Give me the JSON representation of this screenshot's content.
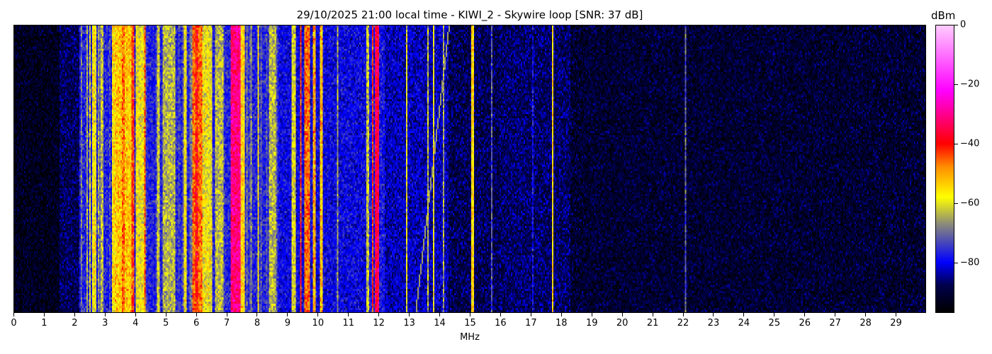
{
  "chart_data": {
    "type": "heatmap",
    "title": "29/10/2025 21:00 local time - KIWI_2 - Skywire loop [SNR: 37 dB]",
    "xlabel": "MHz",
    "ylabel": "",
    "xlim": [
      0,
      30
    ],
    "x_ticks": [
      "0",
      "1",
      "2",
      "3",
      "4",
      "5",
      "6",
      "7",
      "8",
      "9",
      "10",
      "11",
      "12",
      "13",
      "14",
      "15",
      "16",
      "17",
      "18",
      "19",
      "20",
      "21",
      "22",
      "23",
      "24",
      "25",
      "26",
      "27",
      "28",
      "29"
    ],
    "colorbar": {
      "label": "dBm",
      "range": [
        -97,
        0
      ],
      "ticks": [
        0,
        -20,
        -40,
        -60,
        -80
      ],
      "tick_labels": [
        "0",
        "−20",
        "−40",
        "−60",
        "−80"
      ],
      "colormap": [
        {
          "dBm": -97,
          "color": "#000000"
        },
        {
          "dBm": -88,
          "color": "#00004a"
        },
        {
          "dBm": -80,
          "color": "#0000ff"
        },
        {
          "dBm": -67,
          "color": "#8c8c78"
        },
        {
          "dBm": -58,
          "color": "#ffff00"
        },
        {
          "dBm": -48,
          "color": "#ff9000"
        },
        {
          "dBm": -40,
          "color": "#ff0000"
        },
        {
          "dBm": -22,
          "color": "#ff00ff"
        },
        {
          "dBm": 0,
          "color": "#ffccff"
        }
      ]
    },
    "background_levels_dBm": [
      {
        "from_MHz": 0,
        "to_MHz": 1.5,
        "dBm": -93
      },
      {
        "from_MHz": 1.5,
        "to_MHz": 2.15,
        "dBm": -88
      },
      {
        "from_MHz": 2.15,
        "to_MHz": 8.7,
        "dBm": -77
      },
      {
        "from_MHz": 8.7,
        "to_MHz": 11.6,
        "dBm": -80
      },
      {
        "from_MHz": 11.6,
        "to_MHz": 12.2,
        "dBm": -78
      },
      {
        "from_MHz": 12.2,
        "to_MHz": 14.3,
        "dBm": -83
      },
      {
        "from_MHz": 14.3,
        "to_MHz": 16,
        "dBm": -88
      },
      {
        "from_MHz": 16,
        "to_MHz": 18.3,
        "dBm": -87
      },
      {
        "from_MHz": 18.3,
        "to_MHz": 30,
        "dBm": -91
      }
    ],
    "signals_dBm": [
      {
        "from_MHz": 2.45,
        "to_MHz": 2.5,
        "dBm": -62
      },
      {
        "from_MHz": 2.55,
        "to_MHz": 2.7,
        "dBm": -58
      },
      {
        "from_MHz": 2.85,
        "to_MHz": 2.95,
        "dBm": -63
      },
      {
        "from_MHz": 3.2,
        "to_MHz": 3.3,
        "dBm": -56
      },
      {
        "from_MHz": 3.3,
        "to_MHz": 3.9,
        "dBm": -53
      },
      {
        "from_MHz": 3.55,
        "to_MHz": 3.65,
        "dBm": -46
      },
      {
        "from_MHz": 3.85,
        "to_MHz": 3.95,
        "dBm": -43
      },
      {
        "from_MHz": 4.0,
        "to_MHz": 4.3,
        "dBm": -59
      },
      {
        "from_MHz": 4.3,
        "to_MHz": 4.35,
        "dBm": -45
      },
      {
        "from_MHz": 4.7,
        "to_MHz": 4.8,
        "dBm": -62
      },
      {
        "from_MHz": 4.9,
        "to_MHz": 5.3,
        "dBm": -64
      },
      {
        "from_MHz": 5.6,
        "to_MHz": 5.7,
        "dBm": -58
      },
      {
        "from_MHz": 5.85,
        "to_MHz": 6.2,
        "dBm": -46
      },
      {
        "from_MHz": 5.95,
        "to_MHz": 6.05,
        "dBm": -40
      },
      {
        "from_MHz": 6.2,
        "to_MHz": 6.5,
        "dBm": -59
      },
      {
        "from_MHz": 6.6,
        "to_MHz": 6.9,
        "dBm": -63
      },
      {
        "from_MHz": 7.15,
        "to_MHz": 7.45,
        "dBm": -31
      },
      {
        "from_MHz": 7.45,
        "to_MHz": 7.6,
        "dBm": -55
      },
      {
        "from_MHz": 8.0,
        "to_MHz": 8.05,
        "dBm": -58
      },
      {
        "from_MHz": 8.4,
        "to_MHz": 8.6,
        "dBm": -63
      },
      {
        "from_MHz": 9.15,
        "to_MHz": 9.25,
        "dBm": -61
      },
      {
        "from_MHz": 9.4,
        "to_MHz": 9.45,
        "dBm": -42
      },
      {
        "from_MHz": 9.55,
        "to_MHz": 9.75,
        "dBm": -46
      },
      {
        "from_MHz": 9.85,
        "to_MHz": 9.9,
        "dBm": -50
      },
      {
        "from_MHz": 10.05,
        "to_MHz": 10.15,
        "dBm": -53
      },
      {
        "from_MHz": 10.6,
        "to_MHz": 10.65,
        "dBm": -66
      },
      {
        "from_MHz": 11.6,
        "to_MHz": 11.7,
        "dBm": -63
      },
      {
        "from_MHz": 11.8,
        "to_MHz": 11.85,
        "dBm": -42
      },
      {
        "from_MHz": 11.9,
        "to_MHz": 12.0,
        "dBm": -35
      },
      {
        "from_MHz": 12.9,
        "to_MHz": 12.95,
        "dBm": -60
      },
      {
        "from_MHz": 13.6,
        "to_MHz": 13.65,
        "dBm": -63
      },
      {
        "from_MHz": 13.8,
        "to_MHz": 13.85,
        "dBm": -58
      },
      {
        "from_MHz": 14.1,
        "to_MHz": 14.15,
        "dBm": -66
      },
      {
        "from_MHz": 15.05,
        "to_MHz": 15.12,
        "dBm": -55
      },
      {
        "from_MHz": 15.7,
        "to_MHz": 15.75,
        "dBm": -72
      },
      {
        "from_MHz": 17.05,
        "to_MHz": 17.08,
        "dBm": -79
      },
      {
        "from_MHz": 17.7,
        "to_MHz": 17.73,
        "dBm": -55
      },
      {
        "from_MHz": 22.1,
        "to_MHz": 22.13,
        "dBm": -72
      },
      {
        "from_MHz": 27.1,
        "to_MHz": 27.12,
        "dBm": -82
      }
    ],
    "sweep": {
      "bottom_MHz": 13.2,
      "top_MHz": 14.3,
      "dBm": -66
    },
    "grid": false
  }
}
